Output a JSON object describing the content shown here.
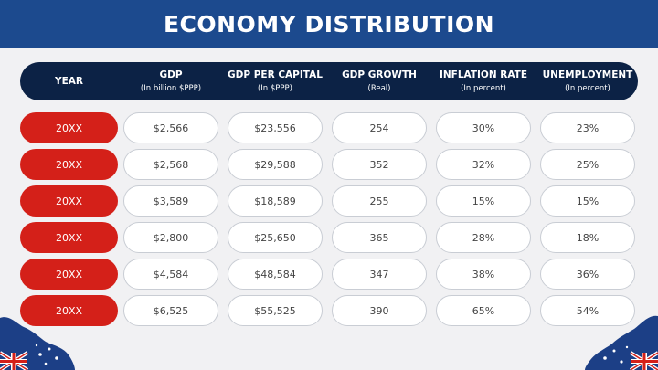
{
  "title": "ECONOMY DISTRIBUTION",
  "colors": {
    "header": "#1c4a8e",
    "table_header": "#0c2245",
    "year_pill": "#d42019",
    "cell_border": "#c9cdd4"
  },
  "columns": [
    {
      "label": "YEAR",
      "sub": ""
    },
    {
      "label": "GDP",
      "sub": "(In billion $PPP)"
    },
    {
      "label": "GDP PER CAPITAL",
      "sub": "(In $PPP)"
    },
    {
      "label": "GDP GROWTH",
      "sub": "(Real)"
    },
    {
      "label": "INFLATION RATE",
      "sub": "(In percent)"
    },
    {
      "label": "UNEMPLOYMENT",
      "sub": "(In percent)"
    }
  ],
  "rows": [
    [
      "20XX",
      "$2,566",
      "$23,556",
      "254",
      "30%",
      "23%"
    ],
    [
      "20XX",
      "$2,568",
      "$29,588",
      "352",
      "32%",
      "25%"
    ],
    [
      "20XX",
      "$3,589",
      "$18,589",
      "255",
      "15%",
      "15%"
    ],
    [
      "20XX",
      "$2,800",
      "$25,650",
      "365",
      "28%",
      "18%"
    ],
    [
      "20XX",
      "$4,584",
      "$48,584",
      "347",
      "38%",
      "36%"
    ],
    [
      "20XX",
      "$6,525",
      "$55,525",
      "390",
      "65%",
      "54%"
    ]
  ],
  "decorations": [
    "australia-map-flag-icon-left",
    "australia-map-flag-icon-right"
  ]
}
